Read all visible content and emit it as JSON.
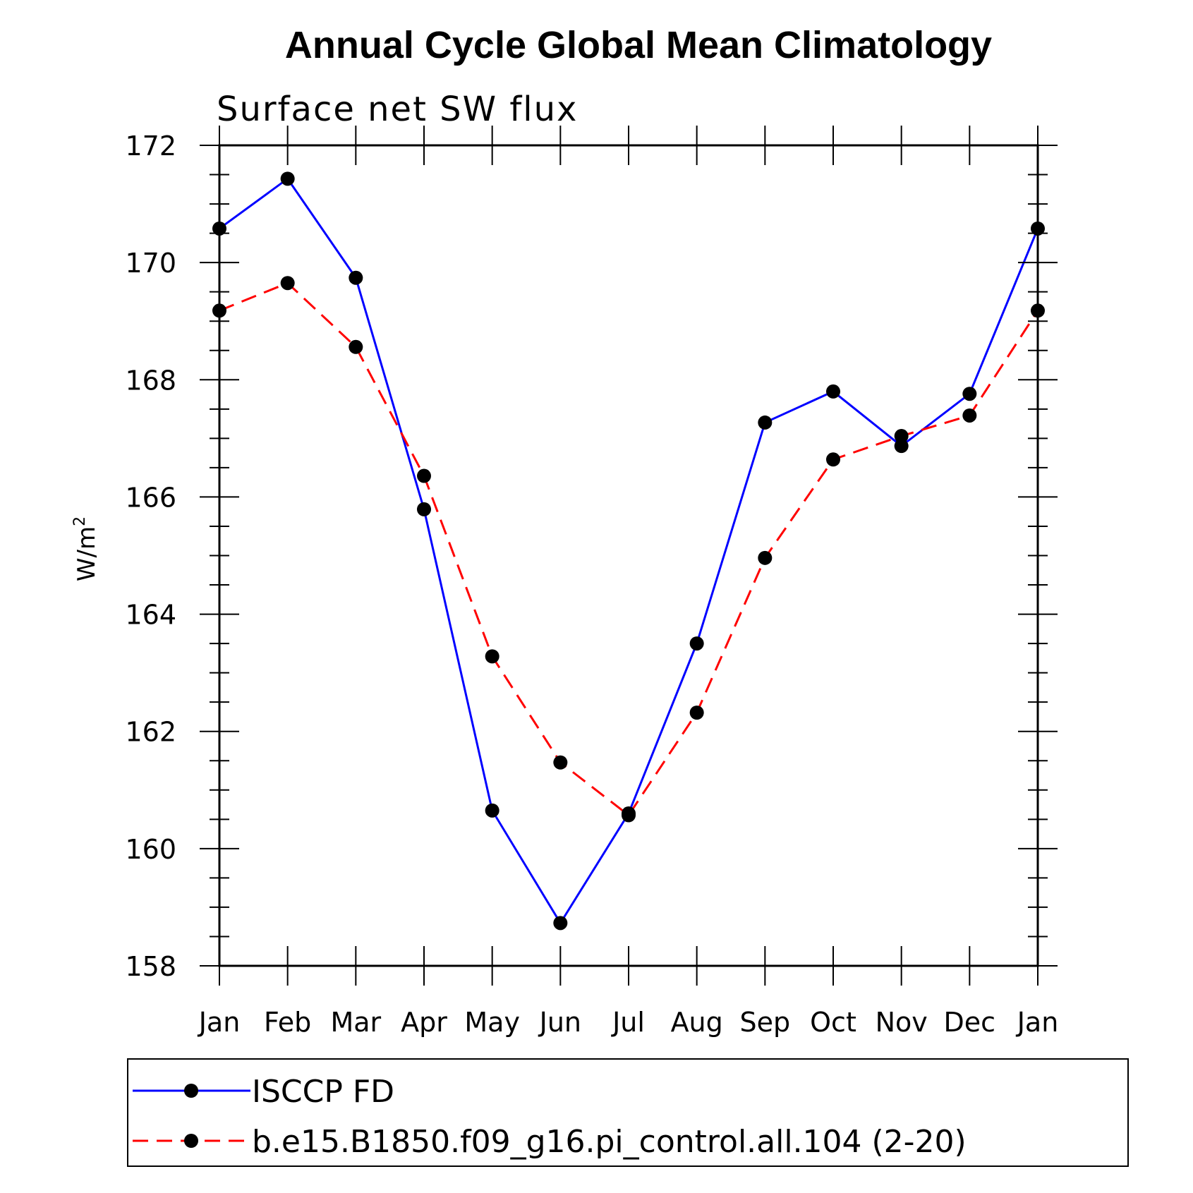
{
  "chart_data": {
    "type": "line",
    "title": "Annual Cycle Global Mean Climatology",
    "subtitle": "Surface net SW flux",
    "ylabel": "W/m",
    "ylabel_sup": "2",
    "xlabel": "",
    "categories": [
      "Jan",
      "Feb",
      "Mar",
      "Apr",
      "May",
      "Jun",
      "Jul",
      "Aug",
      "Sep",
      "Oct",
      "Nov",
      "Dec",
      "Jan"
    ],
    "ylim": [
      158,
      172
    ],
    "yticks": [
      158,
      160,
      162,
      164,
      166,
      168,
      170,
      172
    ],
    "grid": false,
    "legend_position": "bottom",
    "series": [
      {
        "name": "ISCCP FD",
        "color": "#0000ff",
        "dash": "solid",
        "values": [
          170.58,
          171.43,
          169.74,
          165.79,
          160.65,
          158.73,
          160.6,
          163.5,
          167.27,
          167.8,
          166.87,
          167.76,
          170.58
        ]
      },
      {
        "name": "b.e15.B1850.f09_g16.pi_control.all.104 (2-20)",
        "color": "#ff0000",
        "dash": "dashed",
        "values": [
          169.18,
          169.65,
          168.56,
          166.36,
          163.28,
          161.47,
          160.57,
          162.32,
          164.96,
          166.64,
          167.04,
          167.39,
          169.18
        ]
      }
    ]
  }
}
